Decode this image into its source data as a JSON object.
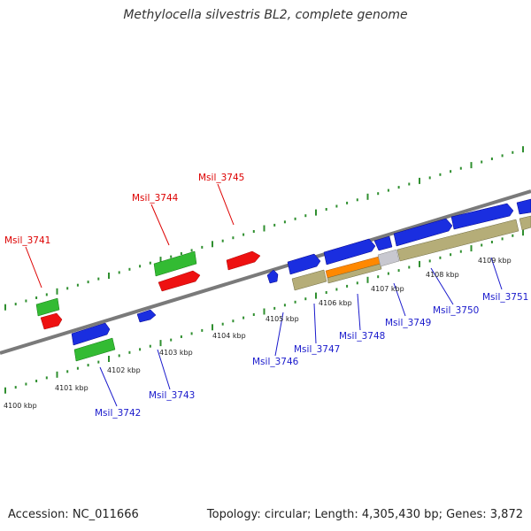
{
  "title": "Methylocella silvestris BL2, complete genome",
  "footer": {
    "accession": "Accession: NC_011666",
    "summary": "Topology: circular; Length: 4,305,430 bp; Genes: 3,872"
  },
  "colors": {
    "backbone": "#7a7a7a",
    "tick_green": "#2f8f2f",
    "gene_red": "#ee1111",
    "gene_green": "#33bb33",
    "gene_blue": "#1a2ee0",
    "gene_tan": "#b5ad78",
    "gene_orange": "#ff8800",
    "gene_gray": "#c8c8d0",
    "label_red": "#dd0000",
    "label_blue": "#1a1acc"
  },
  "scale_labels": [
    "4100 kbp",
    "4101 kbp",
    "4102 kbp",
    "4103 kbp",
    "4104 kbp",
    "4105 kbp",
    "4106 kbp",
    "4107 kbp",
    "4108 kbp",
    "4109 kbp"
  ],
  "gene_labels": {
    "msil_3741": "Msil_3741",
    "msil_3742": "Msil_3742",
    "msil_3743": "Msil_3743",
    "msil_3744": "Msil_3744",
    "msil_3745": "Msil_3745",
    "msil_3746": "Msil_3746",
    "msil_3747": "Msil_3747",
    "msil_3748": "Msil_3748",
    "msil_3749": "Msil_3749",
    "msil_3750": "Msil_3750",
    "msil_3751": "Msil_3751"
  }
}
